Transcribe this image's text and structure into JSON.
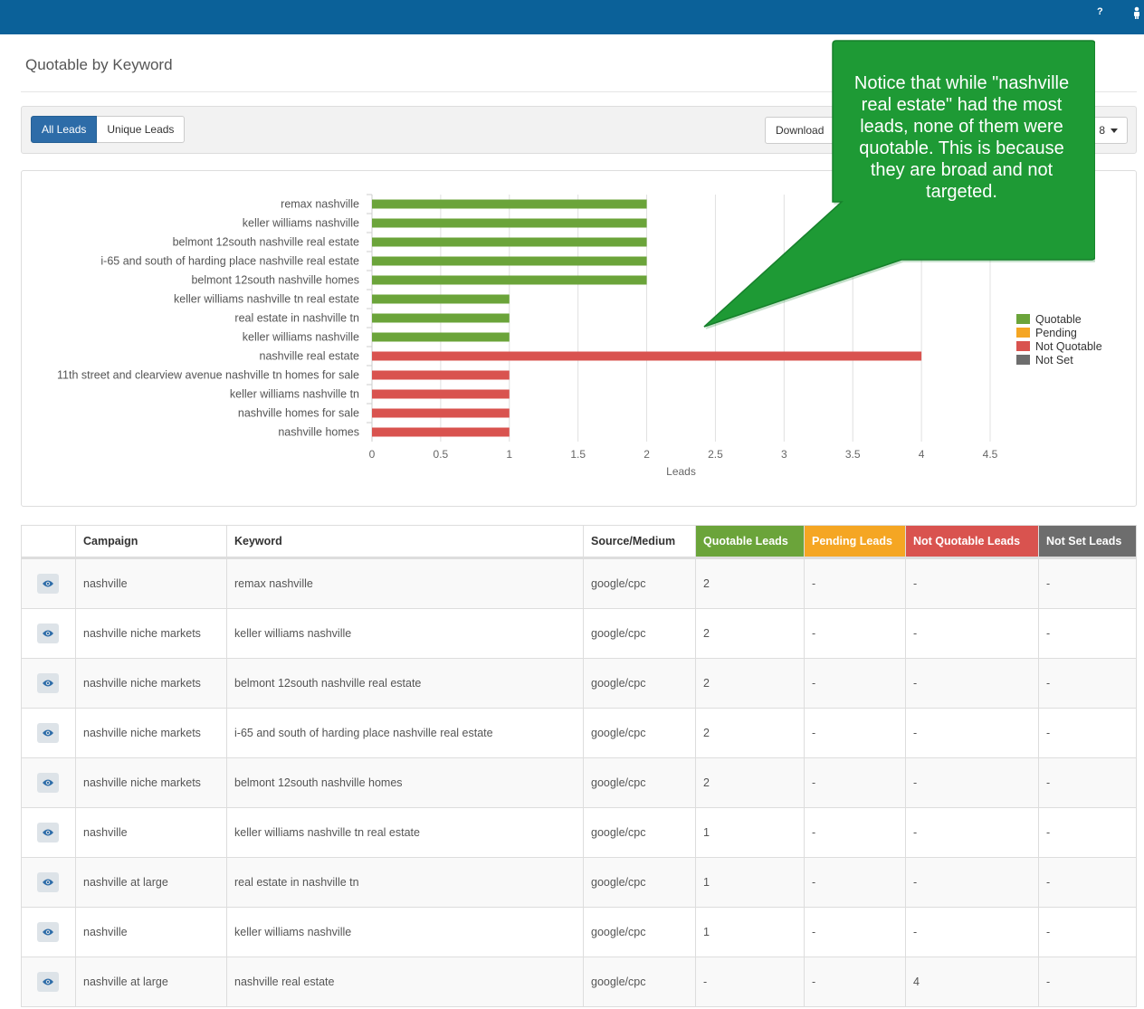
{
  "header": {
    "help_icon": "?",
    "user_icon": "person-icon"
  },
  "page": {
    "title": "Quotable by Keyword"
  },
  "toolbar": {
    "all_leads_label": "All Leads",
    "unique_leads_label": "Unique Leads",
    "download_label": "Download",
    "date_label": "8"
  },
  "callout": {
    "text": "Notice that while \"nashville real estate\" had the most leads, none of them were quotable. This is because they are broad and not targeted."
  },
  "colors": {
    "quotable": "#6ba43a",
    "pending": "#f5a623",
    "not_quotable": "#d9534f",
    "not_set": "#6d6d6d",
    "callout": "#1e9a35"
  },
  "chart_data": {
    "type": "bar",
    "orientation": "horizontal",
    "xlabel": "Leads",
    "xlim": [
      0,
      4.5
    ],
    "xticks": [
      "0",
      "0.5",
      "1",
      "1.5",
      "2",
      "2.5",
      "3",
      "3.5",
      "4",
      "4.5"
    ],
    "categories": [
      "remax nashville",
      "keller williams nashville",
      "belmont 12south nashville real estate",
      "i-65 and south of harding place nashville real estate",
      "belmont 12south nashville homes",
      "keller williams nashville tn real estate",
      "real estate in nashville tn",
      "keller williams nashville",
      "nashville real estate",
      "11th street and clearview avenue nashville tn homes for sale",
      "keller williams nashville tn",
      "nashville homes for sale",
      "nashville homes"
    ],
    "series": [
      {
        "name": "Quotable",
        "color": "#6ba43a",
        "values": [
          2,
          2,
          2,
          2,
          2,
          1,
          1,
          1,
          0,
          0,
          0,
          0,
          0
        ]
      },
      {
        "name": "Pending",
        "color": "#f5a623",
        "values": [
          0,
          0,
          0,
          0,
          0,
          0,
          0,
          0,
          0,
          0,
          0,
          0,
          0
        ]
      },
      {
        "name": "Not Quotable",
        "color": "#d9534f",
        "values": [
          0,
          0,
          0,
          0,
          0,
          0,
          0,
          0,
          4,
          1,
          1,
          1,
          1
        ]
      },
      {
        "name": "Not Set",
        "color": "#6d6d6d",
        "values": [
          0,
          0,
          0,
          0,
          0,
          0,
          0,
          0,
          0,
          0,
          0,
          0,
          0
        ]
      }
    ],
    "legend_position": "right",
    "grid": true
  },
  "table": {
    "columns": [
      "",
      "Campaign",
      "Keyword",
      "Source/Medium",
      "Quotable Leads",
      "Pending Leads",
      "Not Quotable Leads",
      "Not Set Leads"
    ],
    "rows": [
      [
        "nashville",
        "remax nashville",
        "google/cpc",
        "2",
        "-",
        "-",
        "-"
      ],
      [
        "nashville niche markets",
        "keller williams nashville",
        "google/cpc",
        "2",
        "-",
        "-",
        "-"
      ],
      [
        "nashville niche markets",
        "belmont 12south nashville real estate",
        "google/cpc",
        "2",
        "-",
        "-",
        "-"
      ],
      [
        "nashville niche markets",
        "i-65 and south of harding place nashville real estate",
        "google/cpc",
        "2",
        "-",
        "-",
        "-"
      ],
      [
        "nashville niche markets",
        "belmont 12south nashville homes",
        "google/cpc",
        "2",
        "-",
        "-",
        "-"
      ],
      [
        "nashville",
        "keller williams nashville tn real estate",
        "google/cpc",
        "1",
        "-",
        "-",
        "-"
      ],
      [
        "nashville at large",
        "real estate in nashville tn",
        "google/cpc",
        "1",
        "-",
        "-",
        "-"
      ],
      [
        "nashville",
        "keller williams nashville",
        "google/cpc",
        "1",
        "-",
        "-",
        "-"
      ],
      [
        "nashville at large",
        "nashville real estate",
        "google/cpc",
        "-",
        "-",
        "4",
        "-"
      ]
    ]
  }
}
